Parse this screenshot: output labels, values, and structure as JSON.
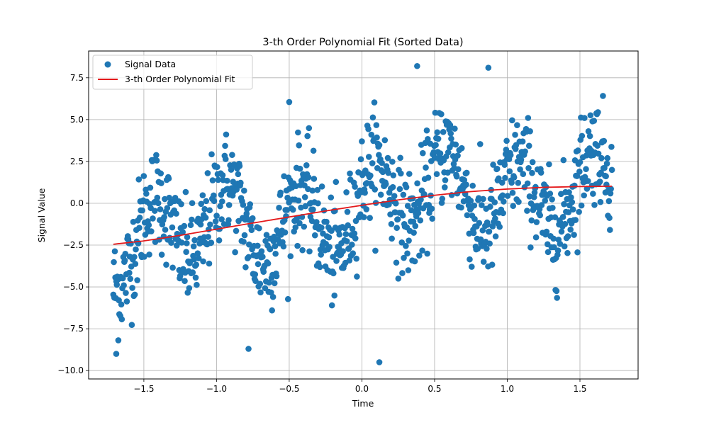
{
  "chart_data": {
    "type": "scatter",
    "title": "3-th Order Polynomial Fit (Sorted Data)",
    "xlabel": "Time",
    "ylabel": "Signal Value",
    "xlim": [
      -1.88,
      1.9
    ],
    "ylim": [
      -10.5,
      9.1
    ],
    "x_ticks": [
      -1.5,
      -1.0,
      -0.5,
      0.0,
      0.5,
      1.0,
      1.5
    ],
    "y_ticks": [
      -10.0,
      -7.5,
      -5.0,
      -2.5,
      0.0,
      2.5,
      5.0,
      7.5
    ],
    "x_tick_labels": [
      "−1.5",
      "−1.0",
      "−0.5",
      "0.0",
      "0.5",
      "1.0",
      "1.5"
    ],
    "y_tick_labels": [
      "−10.0",
      "−7.5",
      "−5.0",
      "−2.5",
      "0.0",
      "2.5",
      "5.0",
      "7.5"
    ],
    "grid": true,
    "legend": {
      "position": "top-left",
      "entries": [
        "Signal Data",
        "3-th Order Polynomial Fit"
      ]
    },
    "colors": {
      "scatter": "#1f77b4",
      "fit": "#e41a1c",
      "grid": "#b0b0b0"
    },
    "series": [
      {
        "name": "Signal Data",
        "kind": "scatter",
        "x_range": [
          -1.71,
          1.72
        ],
        "n_points": 1000,
        "notable_points": [
          {
            "x": 0.38,
            "y": 8.2
          },
          {
            "x": 0.87,
            "y": 8.1
          },
          {
            "x": 0.12,
            "y": -9.5
          },
          {
            "x": -1.69,
            "y": -9.0
          },
          {
            "x": -0.5,
            "y": 6.05
          },
          {
            "x": -0.78,
            "y": -8.7
          }
        ]
      },
      {
        "name": "3-th Order Polynomial Fit",
        "kind": "line",
        "x": [
          -1.71,
          -1.5,
          -1.25,
          -1.0,
          -0.75,
          -0.5,
          -0.25,
          0.0,
          0.25,
          0.5,
          0.75,
          1.0,
          1.25,
          1.5,
          1.72
        ],
        "y": [
          -2.45,
          -2.25,
          -1.92,
          -1.55,
          -1.18,
          -0.82,
          -0.46,
          -0.12,
          0.2,
          0.48,
          0.7,
          0.85,
          0.95,
          1.0,
          1.02
        ]
      }
    ]
  }
}
